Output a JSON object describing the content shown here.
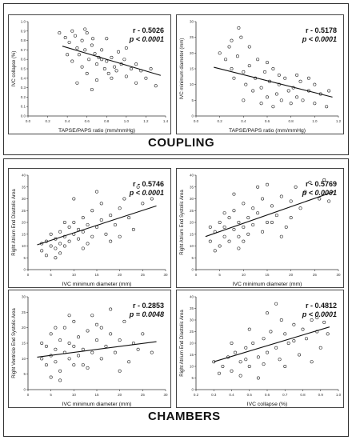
{
  "sections": {
    "coupling": "COUPLING",
    "chambers": "CHAMBERS"
  },
  "chart_data": [
    {
      "type": "scatter",
      "xlabel": "TAPSE/PAPS ratio (mm/mmHg)",
      "ylabel": "IVC collapse (%)",
      "r": "r - 0.5026",
      "p": "p < 0.0001",
      "xlim": [
        0.0,
        1.4
      ],
      "ylim": [
        0.0,
        1.0
      ],
      "xticks": [
        "0.0",
        "0.2",
        "0.4",
        "0.6",
        "0.8",
        "1.0",
        "1.2",
        "1.4"
      ],
      "yticks": [
        "0.0",
        "0.1",
        "0.2",
        "0.3",
        "0.4",
        "0.5",
        "0.6",
        "0.7",
        "0.8",
        "0.9",
        "1.0"
      ],
      "fit": [
        [
          0.35,
          0.74
        ],
        [
          1.35,
          0.43
        ]
      ],
      "points": [
        [
          0.32,
          0.88
        ],
        [
          0.38,
          0.83
        ],
        [
          0.42,
          0.78
        ],
        [
          0.45,
          0.9
        ],
        [
          0.48,
          0.85
        ],
        [
          0.5,
          0.72
        ],
        [
          0.52,
          0.65
        ],
        [
          0.55,
          0.8
        ],
        [
          0.58,
          0.7
        ],
        [
          0.6,
          0.88
        ],
        [
          0.62,
          0.6
        ],
        [
          0.65,
          0.75
        ],
        [
          0.68,
          0.66
        ],
        [
          0.7,
          0.55
        ],
        [
          0.72,
          0.62
        ],
        [
          0.75,
          0.7
        ],
        [
          0.78,
          0.5
        ],
        [
          0.8,
          0.58
        ],
        [
          0.82,
          0.45
        ],
        [
          0.85,
          0.62
        ],
        [
          0.88,
          0.52
        ],
        [
          0.9,
          0.48
        ],
        [
          0.95,
          0.55
        ],
        [
          1.0,
          0.42
        ],
        [
          1.05,
          0.5
        ],
        [
          1.1,
          0.35
        ],
        [
          1.15,
          0.48
        ],
        [
          1.2,
          0.4
        ],
        [
          1.25,
          0.5
        ],
        [
          1.3,
          0.32
        ],
        [
          0.4,
          0.65
        ],
        [
          0.55,
          0.52
        ],
        [
          0.6,
          0.45
        ],
        [
          0.7,
          0.38
        ],
        [
          0.65,
          0.28
        ],
        [
          0.8,
          0.82
        ],
        [
          0.92,
          0.68
        ],
        [
          1.0,
          0.72
        ],
        [
          0.5,
          0.35
        ],
        [
          0.75,
          0.6
        ],
        [
          0.58,
          0.92
        ],
        [
          0.66,
          0.82
        ],
        [
          0.85,
          0.4
        ],
        [
          0.98,
          0.6
        ],
        [
          1.1,
          0.55
        ],
        [
          0.45,
          0.58
        ]
      ]
    },
    {
      "type": "scatter",
      "xlabel": "TAPSE/PAPS ratio (mm/mmHg)",
      "ylabel": "IVC minimum diameter (mm)",
      "r": "r - 0.5178",
      "p": "p < 0.0001",
      "xlim": [
        0.0,
        1.2
      ],
      "ylim": [
        0,
        30
      ],
      "xticks": [
        "0.0",
        "0.2",
        "0.4",
        "0.6",
        "0.8",
        "1.0",
        "1.2"
      ],
      "yticks": [
        "0",
        "5",
        "10",
        "15",
        "20",
        "25",
        "30"
      ],
      "fit": [
        [
          0.15,
          15.5
        ],
        [
          1.15,
          6.0
        ]
      ],
      "points": [
        [
          0.2,
          20
        ],
        [
          0.25,
          18
        ],
        [
          0.28,
          22
        ],
        [
          0.3,
          15
        ],
        [
          0.32,
          12
        ],
        [
          0.35,
          19
        ],
        [
          0.38,
          25
        ],
        [
          0.4,
          14
        ],
        [
          0.42,
          10
        ],
        [
          0.45,
          16
        ],
        [
          0.48,
          8
        ],
        [
          0.5,
          12
        ],
        [
          0.52,
          18
        ],
        [
          0.55,
          9
        ],
        [
          0.58,
          14
        ],
        [
          0.6,
          6
        ],
        [
          0.62,
          11
        ],
        [
          0.65,
          15
        ],
        [
          0.68,
          7
        ],
        [
          0.7,
          10
        ],
        [
          0.72,
          5
        ],
        [
          0.75,
          12
        ],
        [
          0.78,
          8
        ],
        [
          0.8,
          4
        ],
        [
          0.82,
          9
        ],
        [
          0.85,
          6
        ],
        [
          0.88,
          11
        ],
        [
          0.9,
          5
        ],
        [
          0.95,
          8
        ],
        [
          1.0,
          4
        ],
        [
          1.05,
          7
        ],
        [
          1.1,
          3
        ],
        [
          1.12,
          8
        ],
        [
          0.3,
          24
        ],
        [
          0.45,
          22
        ],
        [
          0.55,
          4
        ],
        [
          0.65,
          3
        ],
        [
          0.7,
          13
        ],
        [
          0.85,
          13
        ],
        [
          1.0,
          10
        ],
        [
          0.4,
          5
        ],
        [
          0.36,
          28
        ],
        [
          0.6,
          17
        ],
        [
          0.95,
          12
        ]
      ]
    },
    {
      "type": "scatter",
      "xlabel": "IVC minimum diameter (mm)",
      "ylabel": "Right Atrium End Diastolic Area",
      "r": "r - 0.5746",
      "p": "p < 0.0001",
      "xlim": [
        0,
        30
      ],
      "ylim": [
        0,
        40
      ],
      "xticks": [
        "0",
        "5",
        "10",
        "15",
        "20",
        "25",
        "30"
      ],
      "yticks": [
        "0",
        "5",
        "10",
        "15",
        "20",
        "25",
        "30",
        "35",
        "40"
      ],
      "fit": [
        [
          2,
          10.5
        ],
        [
          28,
          27
        ]
      ],
      "points": [
        [
          3,
          8
        ],
        [
          4,
          12
        ],
        [
          5,
          10
        ],
        [
          5,
          15
        ],
        [
          6,
          9
        ],
        [
          6,
          13
        ],
        [
          7,
          11
        ],
        [
          7,
          16
        ],
        [
          8,
          14
        ],
        [
          8,
          10
        ],
        [
          9,
          18
        ],
        [
          9,
          12
        ],
        [
          10,
          15
        ],
        [
          10,
          20
        ],
        [
          11,
          13
        ],
        [
          11,
          17
        ],
        [
          12,
          22
        ],
        [
          12,
          16
        ],
        [
          13,
          19
        ],
        [
          14,
          14
        ],
        [
          14,
          25
        ],
        [
          15,
          18
        ],
        [
          16,
          21
        ],
        [
          16,
          28
        ],
        [
          17,
          15
        ],
        [
          18,
          23
        ],
        [
          19,
          19
        ],
        [
          20,
          26
        ],
        [
          21,
          30
        ],
        [
          22,
          22
        ],
        [
          23,
          17
        ],
        [
          24,
          35
        ],
        [
          25,
          28
        ],
        [
          27,
          30
        ],
        [
          4,
          6
        ],
        [
          6,
          5
        ],
        [
          8,
          20
        ],
        [
          10,
          30
        ],
        [
          12,
          9
        ],
        [
          15,
          33
        ],
        [
          18,
          12
        ],
        [
          20,
          14
        ],
        [
          3,
          11
        ],
        [
          7,
          7
        ],
        [
          13,
          11
        ]
      ]
    },
    {
      "type": "scatter",
      "xlabel": "IVC minimum diameter (mm)",
      "ylabel": "Right Atrium End Systolic Area",
      "r": "r - 0.5769",
      "p": "p < 0.0001",
      "xlim": [
        0,
        30
      ],
      "ylim": [
        0,
        40
      ],
      "xticks": [
        "0",
        "5",
        "10",
        "15",
        "20",
        "25",
        "30"
      ],
      "yticks": [
        "0",
        "5",
        "10",
        "15",
        "20",
        "25",
        "30",
        "35",
        "40"
      ],
      "fit": [
        [
          2,
          14
        ],
        [
          29,
          33
        ]
      ],
      "points": [
        [
          3,
          12
        ],
        [
          4,
          16
        ],
        [
          5,
          10
        ],
        [
          5,
          20
        ],
        [
          6,
          14
        ],
        [
          6,
          18
        ],
        [
          7,
          22
        ],
        [
          7,
          12
        ],
        [
          8,
          17
        ],
        [
          8,
          25
        ],
        [
          9,
          14
        ],
        [
          9,
          20
        ],
        [
          10,
          18
        ],
        [
          10,
          28
        ],
        [
          11,
          15
        ],
        [
          11,
          22
        ],
        [
          12,
          19
        ],
        [
          12,
          26
        ],
        [
          13,
          24
        ],
        [
          14,
          16
        ],
        [
          14,
          30
        ],
        [
          15,
          20
        ],
        [
          16,
          27
        ],
        [
          17,
          23
        ],
        [
          18,
          31
        ],
        [
          19,
          18
        ],
        [
          20,
          29
        ],
        [
          21,
          35
        ],
        [
          22,
          26
        ],
        [
          23,
          33
        ],
        [
          24,
          37
        ],
        [
          26,
          30
        ],
        [
          27,
          38
        ],
        [
          28,
          29
        ],
        [
          4,
          8
        ],
        [
          6,
          24
        ],
        [
          8,
          32
        ],
        [
          10,
          12
        ],
        [
          13,
          35
        ],
        [
          15,
          36
        ],
        [
          18,
          14
        ],
        [
          20,
          22
        ],
        [
          3,
          18
        ],
        [
          9,
          9
        ],
        [
          16,
          20
        ]
      ]
    },
    {
      "type": "scatter",
      "xlabel": "IVC minimum diameter (mm)",
      "ylabel": "Right Ventricle End Systolic Area",
      "r": "r - 0.2853",
      "p": "p = 0.0048",
      "xlim": [
        0,
        30
      ],
      "ylim": [
        0,
        30
      ],
      "xticks": [
        "0",
        "5",
        "10",
        "15",
        "20",
        "25",
        "30"
      ],
      "yticks": [
        "0",
        "5",
        "10",
        "15",
        "20",
        "25",
        "30"
      ],
      "fit": [
        [
          2,
          10.5
        ],
        [
          28,
          15.5
        ]
      ],
      "points": [
        [
          3,
          10
        ],
        [
          4,
          14
        ],
        [
          4,
          8
        ],
        [
          5,
          11
        ],
        [
          5,
          18
        ],
        [
          6,
          9
        ],
        [
          6,
          13
        ],
        [
          7,
          16
        ],
        [
          7,
          6
        ],
        [
          8,
          12
        ],
        [
          8,
          20
        ],
        [
          9,
          10
        ],
        [
          9,
          15
        ],
        [
          10,
          14
        ],
        [
          10,
          22
        ],
        [
          11,
          11
        ],
        [
          11,
          17
        ],
        [
          12,
          8
        ],
        [
          12,
          13
        ],
        [
          13,
          19
        ],
        [
          14,
          12
        ],
        [
          14,
          24
        ],
        [
          15,
          16
        ],
        [
          16,
          10
        ],
        [
          16,
          20
        ],
        [
          17,
          14
        ],
        [
          18,
          18
        ],
        [
          19,
          12
        ],
        [
          20,
          16
        ],
        [
          21,
          22
        ],
        [
          22,
          9
        ],
        [
          23,
          15
        ],
        [
          24,
          13
        ],
        [
          25,
          18
        ],
        [
          27,
          12
        ],
        [
          5,
          4
        ],
        [
          7,
          3
        ],
        [
          9,
          24
        ],
        [
          13,
          7
        ],
        [
          18,
          26
        ],
        [
          20,
          6
        ],
        [
          3,
          15
        ],
        [
          6,
          20
        ],
        [
          10,
          8
        ],
        [
          15,
          21
        ]
      ]
    },
    {
      "type": "scatter",
      "xlabel": "IVC collapse (%)",
      "ylabel": "Right Atrium End Diastolic Area",
      "r": "r - 0.4812",
      "p": "p < 0.0001",
      "xlim": [
        0.2,
        1.0
      ],
      "ylim": [
        0,
        40
      ],
      "xticks": [
        "0.2",
        "0.3",
        "0.4",
        "0.5",
        "0.6",
        "0.7",
        "0.8",
        "0.9",
        "1.0"
      ],
      "yticks": [
        "0",
        "5",
        "10",
        "15",
        "20",
        "25",
        "30",
        "35",
        "40"
      ],
      "fit": [
        [
          0.3,
          12
        ],
        [
          0.95,
          27
        ]
      ],
      "points": [
        [
          0.3,
          12
        ],
        [
          0.35,
          10
        ],
        [
          0.38,
          14
        ],
        [
          0.4,
          8
        ],
        [
          0.42,
          16
        ],
        [
          0.45,
          12
        ],
        [
          0.48,
          18
        ],
        [
          0.5,
          10
        ],
        [
          0.52,
          20
        ],
        [
          0.55,
          14
        ],
        [
          0.58,
          22
        ],
        [
          0.6,
          16
        ],
        [
          0.62,
          25
        ],
        [
          0.65,
          18
        ],
        [
          0.67,
          13
        ],
        [
          0.7,
          24
        ],
        [
          0.72,
          20
        ],
        [
          0.75,
          28
        ],
        [
          0.78,
          15
        ],
        [
          0.8,
          26
        ],
        [
          0.82,
          22
        ],
        [
          0.85,
          30
        ],
        [
          0.88,
          25
        ],
        [
          0.9,
          18
        ],
        [
          0.92,
          29
        ],
        [
          0.94,
          24
        ],
        [
          0.45,
          6
        ],
        [
          0.55,
          5
        ],
        [
          0.6,
          33
        ],
        [
          0.65,
          37
        ],
        [
          0.7,
          10
        ],
        [
          0.85,
          12
        ],
        [
          0.4,
          20
        ],
        [
          0.5,
          26
        ],
        [
          0.33,
          7
        ],
        [
          0.48,
          13
        ],
        [
          0.58,
          11
        ],
        [
          0.75,
          21
        ],
        [
          0.88,
          31
        ],
        [
          0.68,
          30
        ]
      ]
    }
  ]
}
